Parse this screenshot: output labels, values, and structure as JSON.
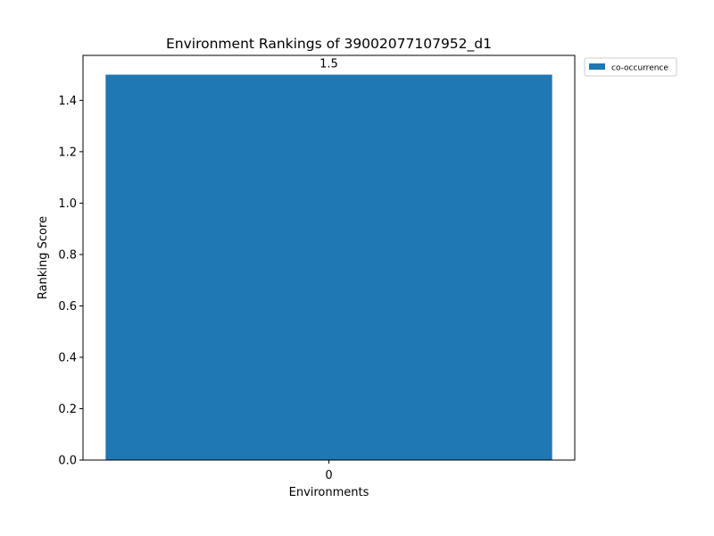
{
  "chart_data": {
    "type": "bar",
    "title": "Environment Rankings of 39002077107952_d1",
    "xlabel": "Environments",
    "ylabel": "Ranking Score",
    "categories": [
      "0"
    ],
    "series": [
      {
        "name": "co-occurrence",
        "values": [
          1.5
        ],
        "color": "#1f77b4"
      }
    ],
    "data_labels": [
      "1.5"
    ],
    "ylim": [
      0,
      1.575
    ],
    "yticks": [
      0.0,
      0.2,
      0.4,
      0.6,
      0.8,
      1.0,
      1.2,
      1.4
    ],
    "ytick_labels": [
      "0.0",
      "0.2",
      "0.4",
      "0.6",
      "0.8",
      "1.0",
      "1.2",
      "1.4"
    ],
    "grid": false,
    "legend_position": "outside-top-right"
  }
}
